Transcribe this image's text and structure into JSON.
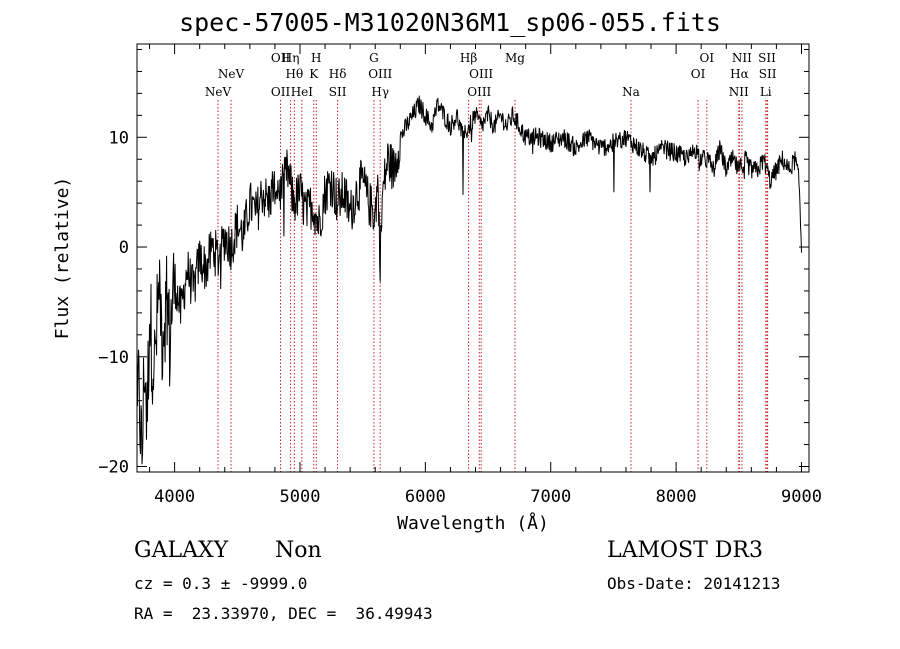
{
  "header": {
    "title": "spec-57005-M31020N36M1_sp06-055.fits"
  },
  "info": {
    "class": "GALAXY",
    "subclass": "Non",
    "cz": "cz = 0.3 ± -9999.0",
    "radec": "RA =  23.33970, DEC =  36.49943",
    "survey": "LAMOST DR3",
    "obs_date": "Obs-Date: 20141213"
  },
  "colors": {
    "line_marker": "#cc2222",
    "spectrum": "#000000",
    "axis": "#000000"
  },
  "chart_data": {
    "type": "line",
    "title": "spec-57005-M31020N36M1_sp06-055.fits",
    "xlabel": "Wavelength (Å)",
    "ylabel": "Flux (relative)",
    "xlim": [
      3700,
      9060
    ],
    "ylim": [
      -20.5,
      18.5
    ],
    "xticks": [
      4000,
      5000,
      6000,
      7000,
      8000,
      9000
    ],
    "yticks": [
      -20,
      -10,
      0,
      10
    ],
    "series": [
      {
        "name": "flux",
        "x": [
          3700,
          3720,
          3740,
          3760,
          3780,
          3800,
          3820,
          3840,
          3860,
          3880,
          3900,
          3920,
          3940,
          3960,
          3980,
          4000,
          4050,
          4100,
          4150,
          4200,
          4250,
          4300,
          4350,
          4400,
          4450,
          4500,
          4550,
          4600,
          4650,
          4700,
          4750,
          4800,
          4850,
          4900,
          4950,
          5000,
          5050,
          5100,
          5150,
          5200,
          5250,
          5300,
          5350,
          5400,
          5450,
          5500,
          5550,
          5600,
          5620,
          5640,
          5660,
          5700,
          5750,
          5800,
          5850,
          5900,
          5950,
          6000,
          6050,
          6100,
          6150,
          6200,
          6250,
          6300,
          6350,
          6400,
          6450,
          6500,
          6550,
          6600,
          6650,
          6700,
          6750,
          6800,
          6900,
          7000,
          7100,
          7200,
          7300,
          7400,
          7500,
          7600,
          7700,
          7800,
          7900,
          8000,
          8100,
          8150,
          8200,
          8250,
          8300,
          8350,
          8400,
          8450,
          8500,
          8550,
          8600,
          8650,
          8700,
          8750,
          8800,
          8850,
          8900,
          8950,
          8980,
          9000
        ],
        "values": [
          -12,
          -14,
          -19.5,
          -10,
          -16,
          -6,
          -9,
          -11,
          -7,
          -3,
          -8,
          -6,
          -4,
          -9,
          -5,
          -3,
          -6,
          -2,
          -4,
          -1,
          -2,
          0,
          -1,
          1,
          0,
          2,
          1,
          4,
          3,
          5,
          4,
          6,
          5,
          7,
          4,
          5,
          3,
          4,
          2,
          5,
          6,
          4,
          5,
          3,
          5,
          6,
          4,
          3,
          6,
          -1,
          5,
          8,
          7,
          10,
          11,
          12,
          13,
          12,
          11,
          13,
          12,
          11,
          12,
          10,
          11,
          12,
          11,
          12,
          11,
          12,
          11,
          12,
          11,
          10,
          10,
          9.5,
          10,
          9,
          10,
          9,
          9.5,
          10,
          9,
          8,
          9,
          8.5,
          8,
          9,
          8,
          8,
          7,
          9,
          7,
          8,
          7,
          8,
          7,
          7,
          8,
          6,
          7,
          8,
          7,
          8,
          6,
          -0.3
        ]
      }
    ],
    "lines": [
      {
        "label": "NeV",
        "x": 4346,
        "row": 3
      },
      {
        "label": "NeV",
        "x": 4450,
        "row": 2
      },
      {
        "label": "OII",
        "x": 4845,
        "row": 1
      },
      {
        "label": "OII",
        "x": 4845,
        "row": 3
      },
      {
        "label": "Hη",
        "x": 4925,
        "row": 1
      },
      {
        "label": "Hθ",
        "x": 4955,
        "row": 2
      },
      {
        "label": "HeI",
        "x": 5015,
        "row": 3
      },
      {
        "label": "H",
        "x": 5130,
        "row": 1
      },
      {
        "label": "K",
        "x": 5110,
        "row": 2
      },
      {
        "label": "Hδ",
        "x": 5300,
        "row": 2
      },
      {
        "label": "SII",
        "x": 5300,
        "row": 3
      },
      {
        "label": "G",
        "x": 5590,
        "row": 1
      },
      {
        "label": "OIII",
        "x": 5640,
        "row": 2
      },
      {
        "label": "Hγ",
        "x": 5640,
        "row": 3
      },
      {
        "label": "Hβ",
        "x": 6345,
        "row": 1
      },
      {
        "label": "OIII",
        "x": 6445,
        "row": 2
      },
      {
        "label": "OIII",
        "x": 6430,
        "row": 3
      },
      {
        "label": "Mg",
        "x": 6715,
        "row": 1
      },
      {
        "label": "Na",
        "x": 7640,
        "row": 3
      },
      {
        "label": "OI",
        "x": 8245,
        "row": 1
      },
      {
        "label": "OI",
        "x": 8175,
        "row": 2
      },
      {
        "label": "NII",
        "x": 8525,
        "row": 1
      },
      {
        "label": "Hα",
        "x": 8505,
        "row": 2
      },
      {
        "label": "NII",
        "x": 8500,
        "row": 3
      },
      {
        "label": "SII",
        "x": 8725,
        "row": 1
      },
      {
        "label": "SII",
        "x": 8730,
        "row": 2
      },
      {
        "label": "Li",
        "x": 8715,
        "row": 3
      }
    ]
  }
}
